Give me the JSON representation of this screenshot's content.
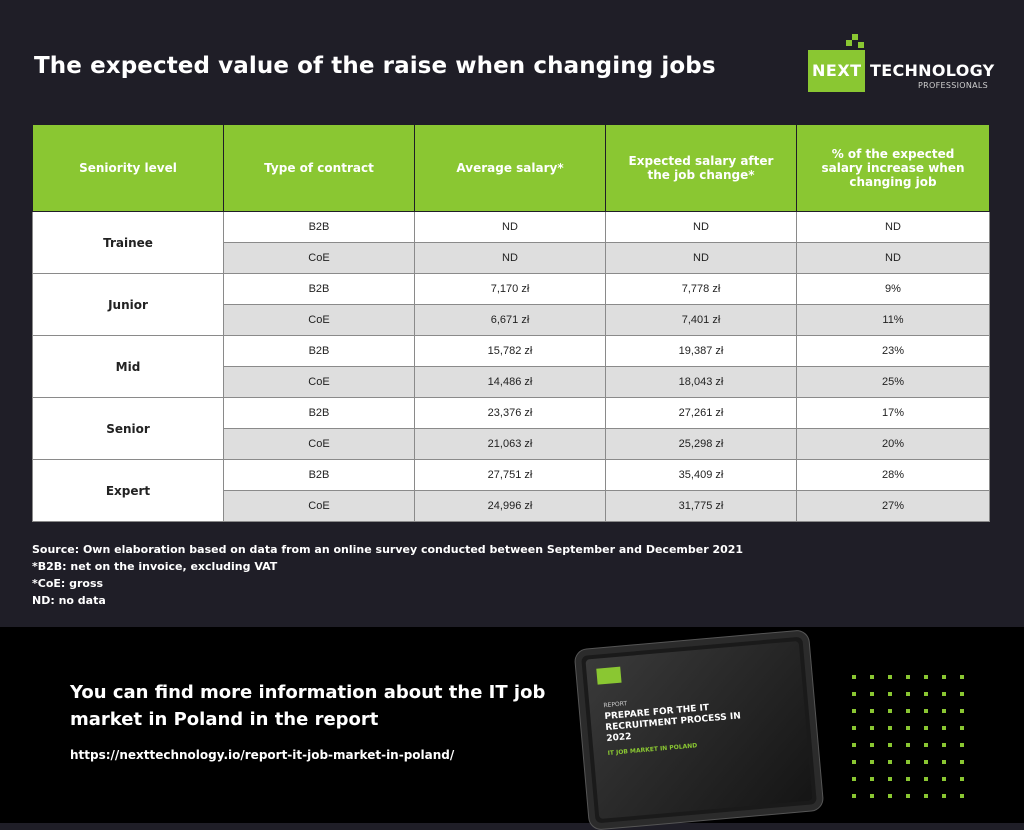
{
  "title": "The expected value of the raise when changing jobs",
  "logo": {
    "next": "NEXT",
    "technology": "TECHNOLOGY",
    "professionals": "PROFESSIONALS",
    "brand_color": "#8ac732"
  },
  "table": {
    "headers": [
      "Seniority level",
      "Type of contract",
      "Average salary*",
      "Expected salary after the job change*",
      "% of the expected salary increase when changing job"
    ],
    "groups": [
      {
        "level": "Trainee",
        "rows": [
          {
            "contract": "B2B",
            "avg": "ND",
            "expected": "ND",
            "pct": "ND"
          },
          {
            "contract": "CoE",
            "avg": "ND",
            "expected": "ND",
            "pct": "ND"
          }
        ]
      },
      {
        "level": "Junior",
        "rows": [
          {
            "contract": "B2B",
            "avg": "7,170 zł",
            "expected": "7,778 zł",
            "pct": "9%"
          },
          {
            "contract": "CoE",
            "avg": "6,671 zł",
            "expected": "7,401 zł",
            "pct": "11%"
          }
        ]
      },
      {
        "level": "Mid",
        "rows": [
          {
            "contract": "B2B",
            "avg": "15,782 zł",
            "expected": "19,387 zł",
            "pct": "23%"
          },
          {
            "contract": "CoE",
            "avg": "14,486 zł",
            "expected": "18,043 zł",
            "pct": "25%"
          }
        ]
      },
      {
        "level": "Senior",
        "rows": [
          {
            "contract": "B2B",
            "avg": "23,376 zł",
            "expected": "27,261 zł",
            "pct": "17%"
          },
          {
            "contract": "CoE",
            "avg": "21,063 zł",
            "expected": "25,298 zł",
            "pct": "20%"
          }
        ]
      },
      {
        "level": "Expert",
        "rows": [
          {
            "contract": "B2B",
            "avg": "27,751 zł",
            "expected": "35,409 zł",
            "pct": "28%"
          },
          {
            "contract": "CoE",
            "avg": "24,996 zł",
            "expected": "31,775 zł",
            "pct": "27%"
          }
        ]
      }
    ]
  },
  "notes": [
    "Source: Own elaboration based on data from an online survey conducted between September and December 2021",
    "*B2B: net on the invoice, excluding VAT",
    "*CoE: gross",
    "ND: no data"
  ],
  "promo": {
    "headline": "You can find more information about the IT job market in Poland in the report",
    "url": "https://nexttechnology.io/report-it-job-market-in-poland/",
    "tablet_report_label": "REPORT",
    "tablet_title": "PREPARE FOR THE IT RECRUITMENT PROCESS IN 2022",
    "tablet_subtitle": "IT JOB MARKET IN POLAND"
  }
}
